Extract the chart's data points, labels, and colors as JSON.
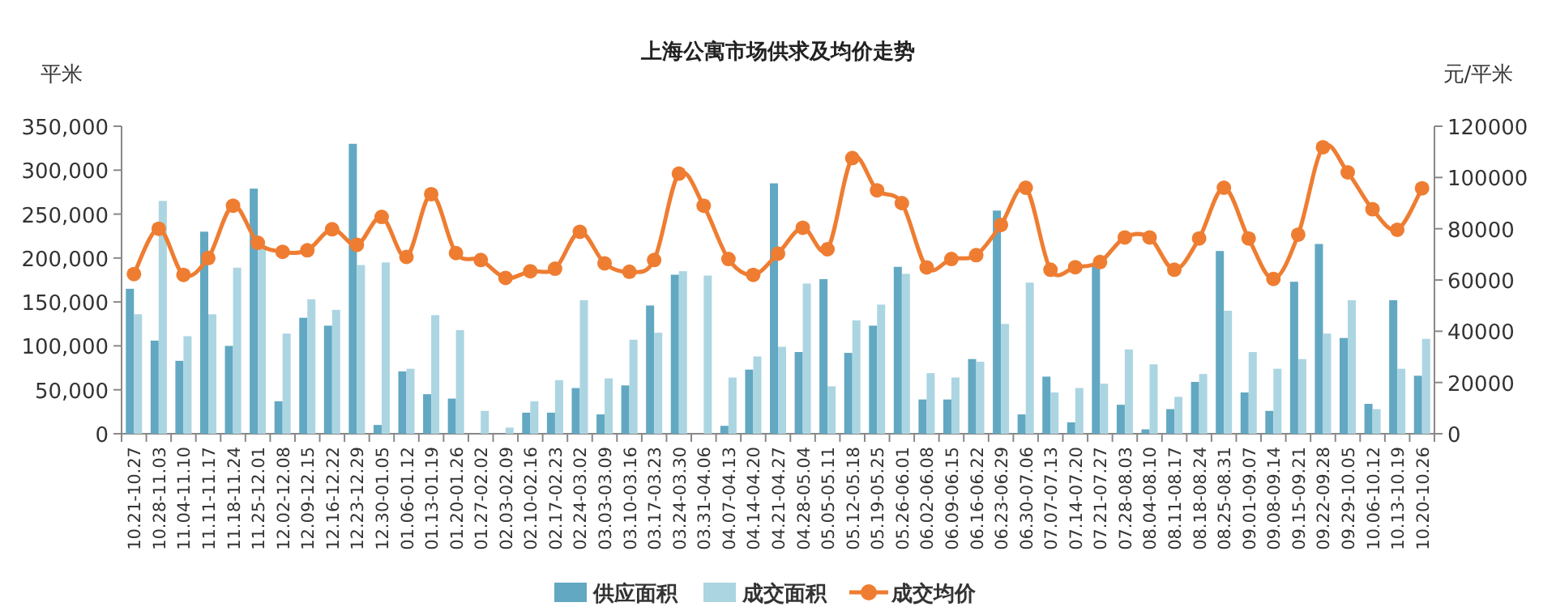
{
  "chart_data": {
    "type": "bar",
    "title": "上海公寓市场供求及均价走势",
    "ylabel": "平米",
    "y2label": "元/平米",
    "categories": [
      "10.21-10.27",
      "10.28-11.03",
      "11.04-11.10",
      "11.11-11.17",
      "11.18-11.24",
      "11.25-12.01",
      "12.02-12.08",
      "12.09-12.15",
      "12.16-12.22",
      "12.23-12.29",
      "12.30-01.05",
      "01.06-01.12",
      "01.13-01.19",
      "01.20-01.26",
      "01.27-02.02",
      "02.03-02.09",
      "02.10-02.16",
      "02.17-02.23",
      "02.24-03.02",
      "03.03-03.09",
      "03.10-03.16",
      "03.17-03.23",
      "03.24-03.30",
      "03.31-04.06",
      "04.07-04.13",
      "04.14-04.20",
      "04.21-04.27",
      "04.28-05.04",
      "05.05-05.11",
      "05.12-05.18",
      "05.19-05.25",
      "05.26-06.01",
      "06.02-06.08",
      "06.09-06.15",
      "06.16-06.22",
      "06.23-06.29",
      "06.30-07.06",
      "07.07-07.13",
      "07.14-07.20",
      "07.21-07.27",
      "07.28-08.03",
      "08.04-08.10",
      "08.11-08.17",
      "08.18-08.24",
      "08.25-08.31",
      "09.01-09.07",
      "09.08-09.14",
      "09.15-09.21",
      "09.22-09.28",
      "09.29-10.05",
      "10.06-10.12",
      "10.13-10.19",
      "10.20-10.26"
    ],
    "series": [
      {
        "name": "供应面积",
        "color": "#62a8c2",
        "values": [
          165000,
          106000,
          83000,
          230000,
          100000,
          279000,
          37000,
          132000,
          123000,
          330000,
          10000,
          71000,
          45000,
          40000,
          0,
          0,
          24000,
          24000,
          52000,
          22000,
          55000,
          146000,
          181000,
          0,
          9000,
          73000,
          285000,
          93000,
          176000,
          92000,
          123000,
          190000,
          39000,
          39000,
          85000,
          254000,
          22000,
          65000,
          13000,
          193000,
          33000,
          5000,
          28000,
          59000,
          208000,
          47000,
          26000,
          173000,
          216000,
          109000,
          34000,
          152000,
          66000
        ]
      },
      {
        "name": "成交面积",
        "color": "#acd5e2",
        "values": [
          136000,
          265000,
          111000,
          136000,
          189000,
          214000,
          114000,
          153000,
          141000,
          192000,
          195000,
          74000,
          135000,
          118000,
          26000,
          7000,
          37000,
          61000,
          152000,
          63000,
          107000,
          115000,
          185000,
          180000,
          64000,
          88000,
          99000,
          171000,
          54000,
          129000,
          147000,
          182000,
          69000,
          64000,
          82000,
          125000,
          172000,
          47000,
          52000,
          57000,
          96000,
          79000,
          42000,
          68000,
          140000,
          93000,
          74000,
          85000,
          114000,
          152000,
          28000,
          74000,
          108000
        ]
      },
      {
        "name": "成交均价",
        "type": "line",
        "axis": "y2",
        "color": "#ee7d32",
        "values": [
          62300,
          80000,
          62000,
          68600,
          89000,
          74500,
          71000,
          71600,
          79800,
          73700,
          84600,
          69000,
          93500,
          70500,
          67800,
          60800,
          63400,
          64400,
          78800,
          66500,
          63200,
          67800,
          101500,
          89000,
          68200,
          62000,
          70300,
          80400,
          72000,
          107600,
          95000,
          90000,
          64900,
          68200,
          69700,
          81500,
          96000,
          64000,
          65000,
          67000,
          76600,
          76600,
          64000,
          76200,
          96000,
          76200,
          60400,
          77700,
          111800,
          102000,
          87600,
          79600,
          95800
        ]
      }
    ],
    "ylim": [
      0,
      350000
    ],
    "yticks": [
      0,
      {
        "value": 50000,
        "label": "50,000"
      },
      {
        "value": 100000,
        "label": "100,000"
      },
      {
        "value": 150000,
        "label": "150,000"
      },
      {
        "value": 200000,
        "label": "200,000"
      },
      {
        "value": 250000,
        "label": "250,000"
      },
      {
        "value": 300000,
        "label": "300,000"
      },
      {
        "value": 350000,
        "label": "350,000"
      }
    ],
    "y2lim": [
      0,
      120000
    ],
    "y2ticks": [
      0,
      20000,
      40000,
      60000,
      80000,
      100000,
      120000
    ],
    "grid": false,
    "legend": "bottom",
    "marker": "circle",
    "line_style": "solid"
  }
}
